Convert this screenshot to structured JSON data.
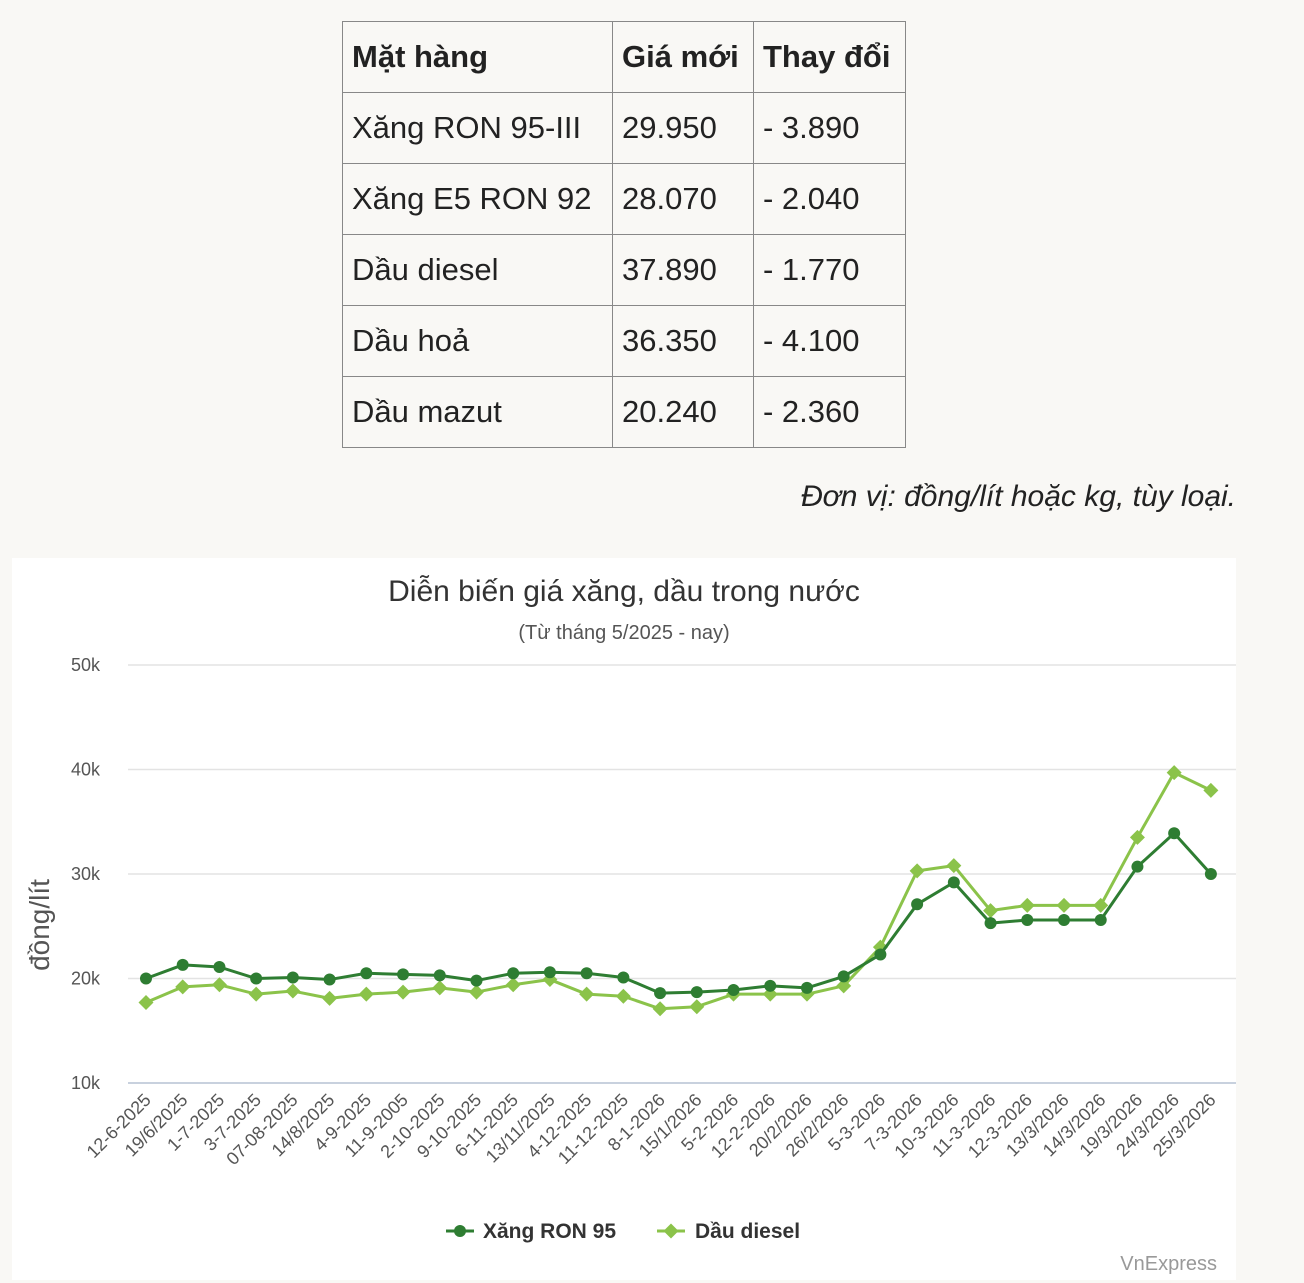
{
  "table": {
    "headers": [
      "Mặt hàng",
      "Giá mới",
      "Thay đổi"
    ],
    "rows": [
      [
        "Xăng RON 95-III",
        "29.950",
        "- 3.890"
      ],
      [
        "Xăng E5 RON 92",
        "28.070",
        "- 2.040"
      ],
      [
        "Dầu diesel",
        "37.890",
        "- 1.770"
      ],
      [
        "Dầu hoả",
        "36.350",
        "- 4.100"
      ],
      [
        "Dầu mazut",
        "20.240",
        "- 2.360"
      ]
    ]
  },
  "unit_note": "Đơn vị: đồng/lít hoặc kg, tùy loại.",
  "credit": "VnExpress",
  "chart_data": {
    "type": "line",
    "title": "Diễn biến giá xăng, dầu trong nước",
    "subtitle": "(Từ tháng 5/2025 - nay)",
    "xlabel": "",
    "ylabel": "đồng/lít",
    "ylim": [
      10000,
      50000
    ],
    "yticks": [
      10000,
      20000,
      30000,
      40000,
      50000
    ],
    "ytick_labels": [
      "10k",
      "20k",
      "30k",
      "40k",
      "50k"
    ],
    "grid": true,
    "legend_position": "bottom",
    "categories": [
      "12-6-2025",
      "19/6/2025",
      "1-7-2025",
      "3-7-2025",
      "07-08-2025",
      "14/8/2025",
      "4-9-2025",
      "11-9-2005",
      "2-10-2025",
      "9-10-2025",
      "6-11-2025",
      "13/11/2025",
      "4-12-2025",
      "11-12-2025",
      "8-1-2026",
      "15/1/2026",
      "5-2-2026",
      "12-2-2026",
      "20/2/2026",
      "26/2/2026",
      "5-3-2026",
      "7-3-2026",
      "10-3-2026",
      "11-3-2026",
      "12-3-2026",
      "13/3/2026",
      "14/3/2026",
      "19/3/2026",
      "24/3/2026",
      "25/3/2026"
    ],
    "series": [
      {
        "name": "Xăng RON 95",
        "color": "#2e7d32",
        "marker": "circle",
        "values": [
          20000,
          21300,
          21100,
          20000,
          20100,
          19900,
          20500,
          20400,
          20300,
          19800,
          20500,
          20600,
          20500,
          20100,
          18600,
          18700,
          18900,
          19300,
          19100,
          20200,
          22300,
          27100,
          29200,
          25300,
          25600,
          25600,
          25600,
          30700,
          33900,
          30000
        ]
      },
      {
        "name": "Dầu diesel",
        "color": "#8bc34a",
        "marker": "diamond",
        "values": [
          17700,
          19200,
          19400,
          18500,
          18800,
          18100,
          18500,
          18700,
          19100,
          18700,
          19400,
          19900,
          18500,
          18300,
          17100,
          17300,
          18500,
          18500,
          18500,
          19300,
          23000,
          30300,
          30800,
          26500,
          27000,
          27000,
          27000,
          33500,
          39700,
          38000
        ]
      }
    ]
  }
}
